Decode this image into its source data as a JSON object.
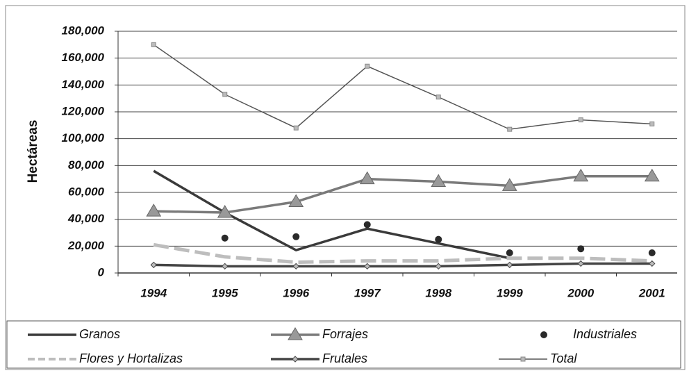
{
  "chart_data": {
    "type": "line",
    "y_label": "Hectáreas",
    "categories": [
      "1994",
      "1995",
      "1996",
      "1997",
      "1998",
      "1999",
      "2000",
      "2001"
    ],
    "ylim": [
      0,
      180000
    ],
    "yticks": [
      0,
      {
        "value": 20000,
        "label": "20,000"
      },
      {
        "value": 40000,
        "label": "40,000"
      },
      {
        "value": 60000,
        "label": "60,000"
      },
      {
        "value": 80000,
        "label": "80,000"
      },
      {
        "value": 100000,
        "label": "100,000"
      },
      {
        "value": 120000,
        "label": "120,000"
      },
      {
        "value": 140000,
        "label": "140,000"
      },
      {
        "value": 160000,
        "label": "160,000"
      },
      {
        "value": 180000,
        "label": "180,000"
      }
    ],
    "grid": true,
    "legend": "bottom",
    "series": [
      {
        "name": "Granos",
        "color": "#3a3a3a",
        "line_style": "thick",
        "marker": "none",
        "values": [
          76000,
          45000,
          17000,
          33000,
          22000,
          11000,
          null,
          null
        ]
      },
      {
        "name": "Forrajes",
        "color": "#7a7a7a",
        "line_style": "thick",
        "marker": "triangle",
        "values": [
          46000,
          45000,
          53000,
          70000,
          68000,
          65000,
          72000,
          72000
        ]
      },
      {
        "name": "Industriales",
        "color": "#2a2a2a",
        "line_style": "none",
        "marker": "circle",
        "values": [
          null,
          26000,
          27000,
          36000,
          25000,
          15000,
          18000,
          15000
        ]
      },
      {
        "name": "Flores y Hortalizas",
        "color": "#bdbdbd",
        "line_style": "dashed",
        "marker": "none",
        "values": [
          21000,
          12000,
          8000,
          9000,
          9000,
          11000,
          11000,
          9000
        ]
      },
      {
        "name": "Frutales",
        "color": "#444444",
        "line_style": "thick",
        "marker": "diamond",
        "values": [
          6000,
          5000,
          5000,
          5000,
          5000,
          6000,
          7000,
          7000
        ]
      },
      {
        "name": "Total",
        "color": "#555555",
        "line_style": "thin",
        "marker": "square",
        "values": [
          170000,
          133000,
          108000,
          154000,
          131000,
          107000,
          114000,
          111000
        ]
      }
    ]
  }
}
